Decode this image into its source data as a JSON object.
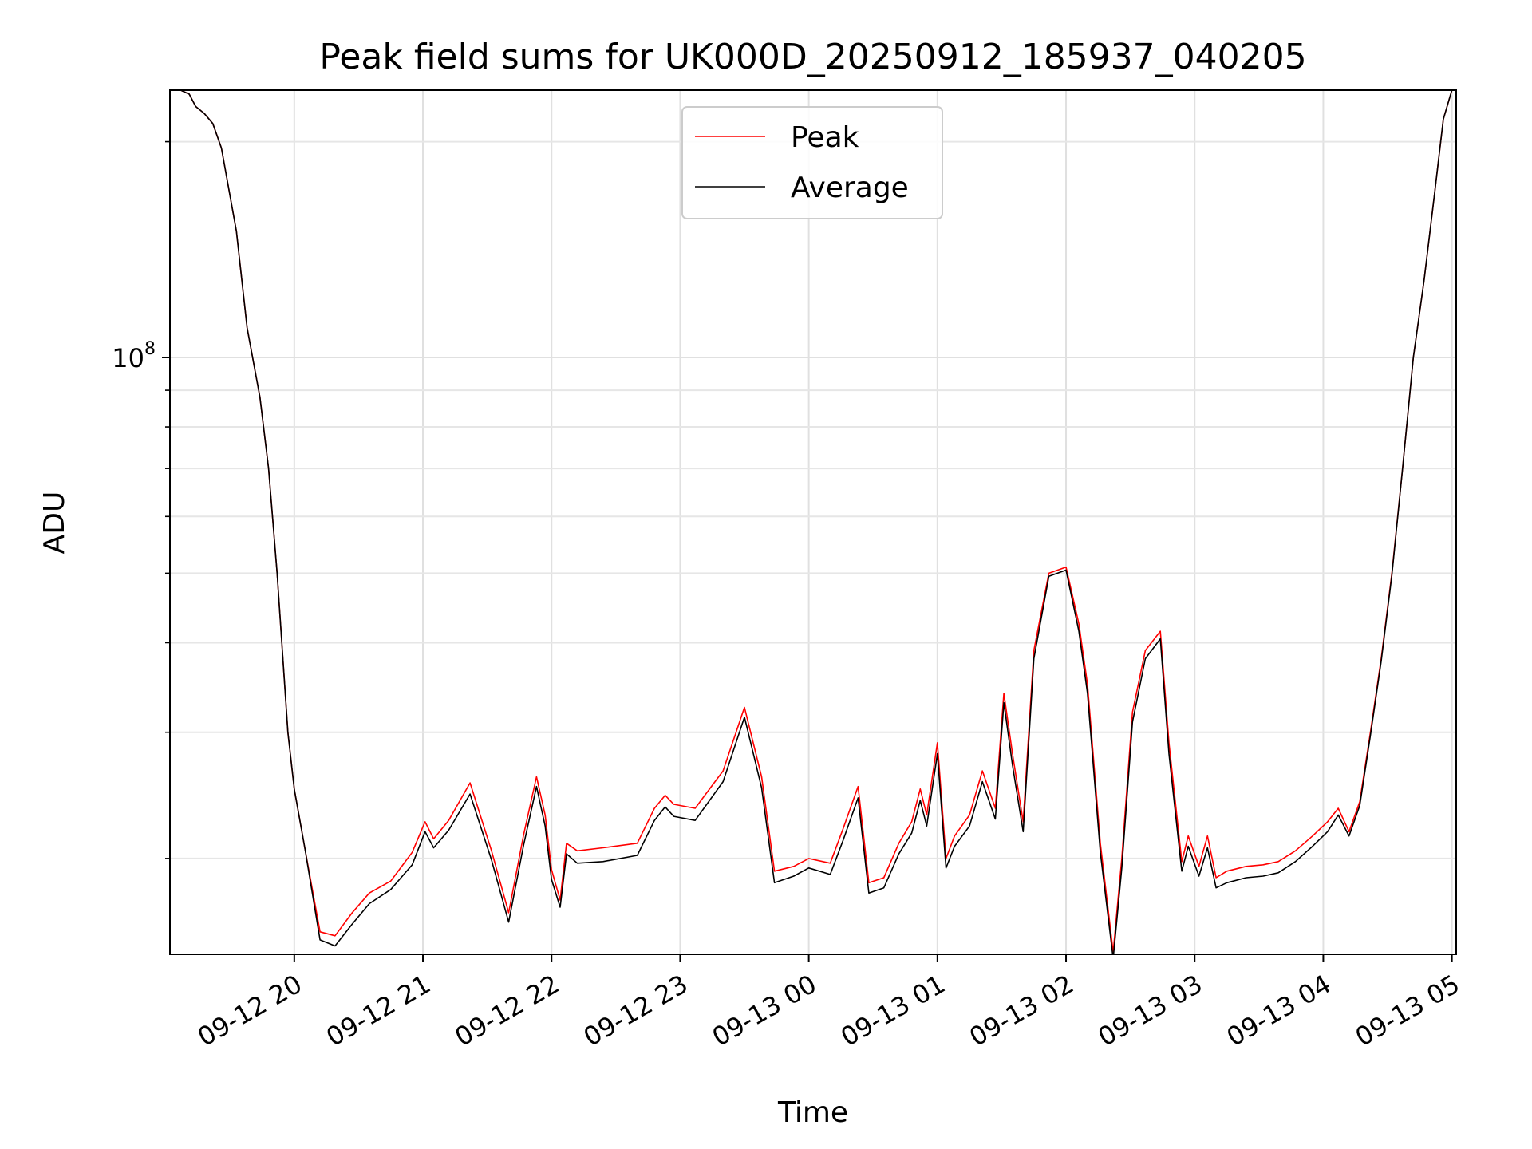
{
  "chart_data": {
    "type": "line",
    "title": "Peak field sums for UK000D_20250912_185937_040205",
    "xlabel": "Time",
    "ylabel": "ADU",
    "y_scale": "log",
    "ylim": [
      14700000,
      236000000
    ],
    "xlim": [
      "2025-09-12 19:02",
      "2025-09-13 05:02"
    ],
    "grid": true,
    "legend_position": "top-center",
    "x_ticks": [
      {
        "t": "2025-09-12 20:00",
        "label": "09-12 20"
      },
      {
        "t": "2025-09-12 21:00",
        "label": "09-12 21"
      },
      {
        "t": "2025-09-12 22:00",
        "label": "09-12 22"
      },
      {
        "t": "2025-09-12 23:00",
        "label": "09-12 23"
      },
      {
        "t": "2025-09-13 00:00",
        "label": "09-13 00"
      },
      {
        "t": "2025-09-13 01:00",
        "label": "09-13 01"
      },
      {
        "t": "2025-09-13 02:00",
        "label": "09-13 02"
      },
      {
        "t": "2025-09-13 03:00",
        "label": "09-13 03"
      },
      {
        "t": "2025-09-13 04:00",
        "label": "09-13 04"
      },
      {
        "t": "2025-09-13 05:00",
        "label": "09-13 05"
      }
    ],
    "y_major_ticks": [
      {
        "value": 100000000,
        "base": "10",
        "exp": "8"
      }
    ],
    "y_minor_ticks": [
      20000000,
      30000000,
      40000000,
      50000000,
      60000000,
      70000000,
      80000000,
      90000000,
      200000000
    ],
    "x": [
      "2025-09-12 19:02",
      "2025-09-12 19:07",
      "2025-09-12 19:11",
      "2025-09-12 19:14",
      "2025-09-12 19:18",
      "2025-09-12 19:22",
      "2025-09-12 19:26",
      "2025-09-12 19:33",
      "2025-09-12 19:38",
      "2025-09-12 19:44",
      "2025-09-12 19:48",
      "2025-09-12 19:52",
      "2025-09-12 19:57",
      "2025-09-12 20:00",
      "2025-09-12 20:05",
      "2025-09-12 20:12",
      "2025-09-12 20:19",
      "2025-09-12 20:27",
      "2025-09-12 20:35",
      "2025-09-12 20:45",
      "2025-09-12 20:55",
      "2025-09-12 21:01",
      "2025-09-12 21:05",
      "2025-09-12 21:12",
      "2025-09-12 21:22",
      "2025-09-12 21:32",
      "2025-09-12 21:40",
      "2025-09-12 21:47",
      "2025-09-12 21:53",
      "2025-09-12 21:57",
      "2025-09-12 22:00",
      "2025-09-12 22:04",
      "2025-09-12 22:07",
      "2025-09-12 22:12",
      "2025-09-12 22:24",
      "2025-09-12 22:40",
      "2025-09-12 22:48",
      "2025-09-12 22:53",
      "2025-09-12 22:57",
      "2025-09-12 23:07",
      "2025-09-12 23:20",
      "2025-09-12 23:30",
      "2025-09-12 23:38",
      "2025-09-12 23:44",
      "2025-09-12 23:53",
      "2025-09-13 00:00",
      "2025-09-13 00:10",
      "2025-09-13 00:16",
      "2025-09-13 00:23",
      "2025-09-13 00:28",
      "2025-09-13 00:35",
      "2025-09-13 00:42",
      "2025-09-13 00:48",
      "2025-09-13 00:52",
      "2025-09-13 00:55",
      "2025-09-13 01:00",
      "2025-09-13 01:04",
      "2025-09-13 01:08",
      "2025-09-13 01:15",
      "2025-09-13 01:21",
      "2025-09-13 01:27",
      "2025-09-13 01:31",
      "2025-09-13 01:35",
      "2025-09-13 01:40",
      "2025-09-13 01:45",
      "2025-09-13 01:52",
      "2025-09-13 02:00",
      "2025-09-13 02:06",
      "2025-09-13 02:10",
      "2025-09-13 02:16",
      "2025-09-13 02:22",
      "2025-09-13 02:26",
      "2025-09-13 02:31",
      "2025-09-13 02:37",
      "2025-09-13 02:44",
      "2025-09-13 02:48",
      "2025-09-13 02:54",
      "2025-09-13 02:57",
      "2025-09-13 03:02",
      "2025-09-13 03:06",
      "2025-09-13 03:10",
      "2025-09-13 03:15",
      "2025-09-13 03:24",
      "2025-09-13 03:32",
      "2025-09-13 03:39",
      "2025-09-13 03:47",
      "2025-09-13 03:55",
      "2025-09-13 04:02",
      "2025-09-13 04:07",
      "2025-09-13 04:12",
      "2025-09-13 04:17",
      "2025-09-13 04:22",
      "2025-09-13 04:27",
      "2025-09-13 04:32",
      "2025-09-13 04:37",
      "2025-09-13 04:42",
      "2025-09-13 04:47",
      "2025-09-13 04:52",
      "2025-09-13 04:56",
      "2025-09-13 05:00"
    ],
    "series": [
      {
        "name": "Peak",
        "color": "#ff0000",
        "values": [
          236,
          236,
          233,
          224,
          219,
          212,
          196,
          150,
          110,
          88,
          70,
          50,
          30,
          25,
          20.6,
          15.8,
          15.6,
          16.8,
          17.9,
          18.6,
          20.4,
          22.5,
          21.3,
          22.6,
          25.5,
          20.5,
          16.8,
          21.6,
          26,
          23,
          19.3,
          17.5,
          21,
          20.5,
          20.7,
          21,
          23.5,
          24.5,
          23.8,
          23.5,
          26.5,
          32.5,
          26,
          19.2,
          19.5,
          20,
          19.7,
          22,
          25.2,
          18.5,
          18.8,
          21,
          22.5,
          25,
          23,
          29,
          20,
          21.5,
          23,
          26.5,
          23.5,
          34,
          28,
          22.5,
          39,
          50,
          51,
          42.5,
          35,
          21,
          14.8,
          20,
          32,
          39,
          41.5,
          29,
          19.8,
          21.5,
          19.5,
          21.5,
          18.8,
          19.2,
          19.5,
          19.6,
          19.8,
          20.5,
          21.5,
          22.5,
          23.5,
          21.8,
          24,
          30,
          38,
          50,
          70,
          100,
          128,
          170,
          215,
          236
        ]
      },
      {
        "name": "Average",
        "color": "#000000",
        "values": [
          236,
          236,
          233,
          224,
          219,
          212,
          196,
          150,
          110,
          88,
          70,
          50,
          30,
          25,
          20.6,
          15.4,
          15.1,
          16.2,
          17.3,
          18.1,
          19.6,
          21.8,
          20.7,
          21.9,
          24.6,
          19.9,
          16.3,
          20.9,
          25.2,
          22.2,
          18.7,
          17.1,
          20.3,
          19.7,
          19.8,
          20.2,
          22.6,
          23.6,
          22.9,
          22.6,
          25.6,
          31.5,
          25.1,
          18.5,
          18.9,
          19.4,
          19,
          21.2,
          24.3,
          17.9,
          18.2,
          20.3,
          21.7,
          24.1,
          22.2,
          28,
          19.4,
          20.8,
          22.2,
          25.6,
          22.7,
          33,
          27,
          21.8,
          38,
          49.5,
          50.5,
          41.5,
          34,
          20.4,
          14.5,
          19.4,
          31,
          38,
          40.5,
          28,
          19.2,
          20.8,
          18.9,
          20.7,
          18.2,
          18.5,
          18.8,
          18.9,
          19.1,
          19.8,
          20.8,
          21.8,
          23,
          21.5,
          23.7,
          29.7,
          37.7,
          49.7,
          70,
          100,
          128,
          170,
          215,
          236
        ]
      }
    ],
    "value_unit_note": ""
  }
}
